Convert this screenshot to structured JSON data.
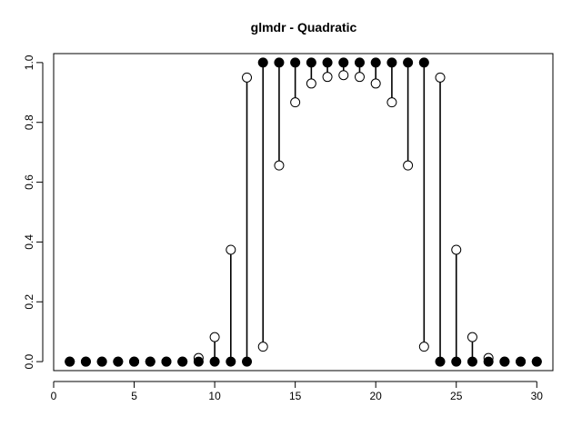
{
  "chart_data": {
    "type": "scatter",
    "title": "glmdr - Quadratic",
    "xlabel": "",
    "ylabel": "",
    "xlim": [
      0,
      31
    ],
    "ylim": [
      -0.03,
      1.03
    ],
    "x_ticks": [
      0,
      5,
      10,
      15,
      20,
      25,
      30
    ],
    "y_ticks": [
      0.0,
      0.2,
      0.4,
      0.6,
      0.8,
      1.0
    ],
    "x_tick_labels": [
      "0",
      "5",
      "10",
      "15",
      "20",
      "25",
      "30"
    ],
    "y_tick_labels": [
      "0.0",
      "0.2",
      "0.4",
      "0.6",
      "0.8",
      "1.0"
    ],
    "grid": false,
    "legend": "none",
    "series": [
      {
        "marker": "filled-circle",
        "x": [
          1,
          2,
          3,
          4,
          5,
          6,
          7,
          8,
          9,
          10,
          11,
          12,
          13,
          14,
          15,
          16,
          17,
          18,
          19,
          20,
          21,
          22,
          23,
          24,
          25,
          26,
          27,
          28,
          29,
          30
        ],
        "values": [
          0,
          0,
          0,
          0,
          0,
          0,
          0,
          0,
          0,
          0,
          0,
          0,
          1,
          1,
          1,
          1,
          1,
          1,
          1,
          1,
          1,
          1,
          1,
          0,
          0,
          0,
          0,
          0,
          0,
          0
        ]
      },
      {
        "marker": "open-circle",
        "x": [
          1,
          2,
          3,
          4,
          5,
          6,
          7,
          8,
          9,
          10,
          11,
          12,
          13,
          14,
          15,
          16,
          17,
          18,
          19,
          20,
          21,
          22,
          23,
          24,
          25,
          26,
          27,
          28,
          29,
          30
        ],
        "values": [
          0,
          0,
          0,
          0,
          0,
          0,
          0,
          0,
          0.012,
          0.082,
          0.374,
          0.95,
          0.05,
          0.656,
          0.867,
          0.93,
          0.952,
          0.958,
          0.952,
          0.93,
          0.867,
          0.656,
          0.05,
          0.95,
          0.374,
          0.082,
          0.012,
          0,
          0,
          0
        ]
      }
    ],
    "stems": "vertical segment from each observed value to its fitted value"
  }
}
